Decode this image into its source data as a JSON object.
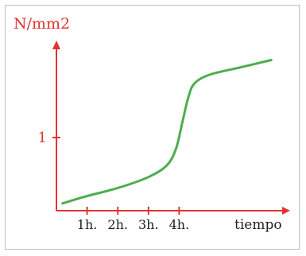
{
  "chart_data": {
    "type": "line",
    "title": "",
    "ylabel": "N/mm2",
    "xlabel": "tiempo",
    "x_ticks": [
      {
        "x": 1,
        "label": "1h."
      },
      {
        "x": 2,
        "label": "2h."
      },
      {
        "x": 3,
        "label": "3h."
      },
      {
        "x": 4,
        "label": "4h."
      }
    ],
    "y_ticks": [
      {
        "y": 1,
        "label": "1"
      }
    ],
    "xlim": [
      0,
      7.4
    ],
    "ylim": [
      0,
      2.2
    ],
    "grid": false,
    "series": [
      {
        "color": "#4cae4c",
        "points": [
          [
            0.2,
            0.1
          ],
          [
            1.0,
            0.2
          ],
          [
            2.0,
            0.31
          ],
          [
            3.0,
            0.46
          ],
          [
            3.6,
            0.62
          ],
          [
            3.9,
            0.85
          ],
          [
            4.1,
            1.2
          ],
          [
            4.3,
            1.55
          ],
          [
            4.5,
            1.74
          ],
          [
            5.0,
            1.86
          ],
          [
            6.0,
            1.96
          ],
          [
            7.0,
            2.06
          ]
        ]
      }
    ],
    "axis_color": "#e2332f"
  }
}
